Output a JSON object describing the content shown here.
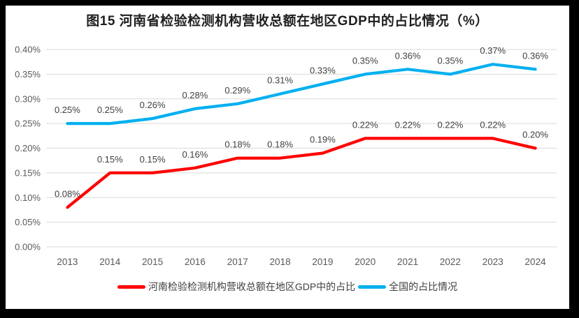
{
  "frame": {
    "border_color": "#000000",
    "background": "#ffffff"
  },
  "chart_data": {
    "type": "line",
    "title": "图15  河南省检验检测机构营收总额在地区GDP中的占比情况（%）",
    "categories": [
      "2013",
      "2014",
      "2015",
      "2016",
      "2017",
      "2018",
      "2019",
      "2020",
      "2021",
      "2022",
      "2023",
      "2024"
    ],
    "series": [
      {
        "name": "河南检验检测机构营收总额在地区GDP中的占比",
        "color": "#FF0000",
        "values": [
          0.08,
          0.15,
          0.15,
          0.16,
          0.18,
          0.18,
          0.19,
          0.22,
          0.22,
          0.22,
          0.22,
          0.2
        ],
        "data_labels": [
          "0.08%",
          "0.15%",
          "0.15%",
          "0.16%",
          "0.18%",
          "0.18%",
          "0.19%",
          "0.22%",
          "0.22%",
          "0.22%",
          "0.22%",
          "0.20%"
        ]
      },
      {
        "name": "全国的占比情况",
        "color": "#00B0F0",
        "values": [
          0.25,
          0.25,
          0.26,
          0.28,
          0.29,
          0.31,
          0.33,
          0.35,
          0.36,
          0.35,
          0.37,
          0.36
        ],
        "data_labels": [
          "0.25%",
          "0.25%",
          "0.26%",
          "0.28%",
          "0.29%",
          "0.31%",
          "0.33%",
          "0.35%",
          "0.36%",
          "0.35%",
          "0.37%",
          "0.36%"
        ]
      }
    ],
    "xlabel": "",
    "ylabel": "",
    "ylim": [
      0,
      0.4
    ],
    "ytick_step": 0.05,
    "ytick_labels": [
      "0.00%",
      "0.05%",
      "0.10%",
      "0.15%",
      "0.20%",
      "0.25%",
      "0.30%",
      "0.35%",
      "0.40%"
    ],
    "grid": true,
    "gridline_color": "#D9D9D9",
    "axis_text_color": "#595959",
    "data_label_color": "#404040",
    "legend_position": "bottom"
  }
}
